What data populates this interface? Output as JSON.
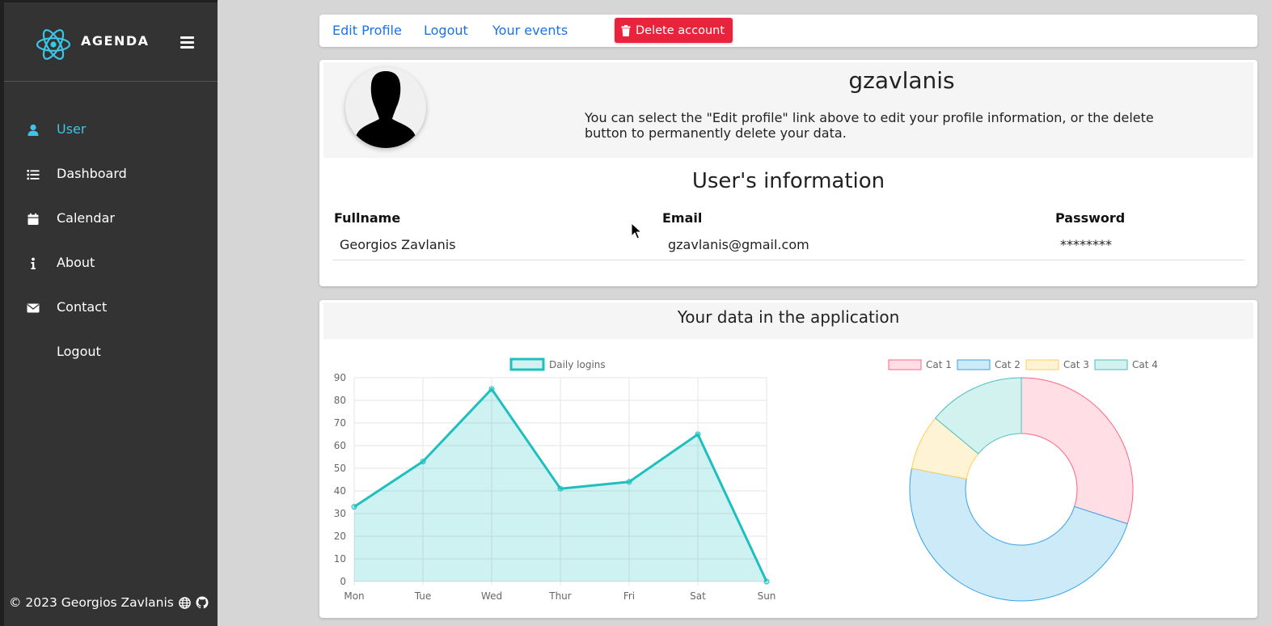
{
  "sidebar": {
    "brand": "AGENDA",
    "items": [
      {
        "label": "User",
        "icon": "user-icon",
        "active": true
      },
      {
        "label": "Dashboard",
        "icon": "list-icon",
        "active": false
      },
      {
        "label": "Calendar",
        "icon": "calendar-icon",
        "active": false
      },
      {
        "label": "About",
        "icon": "info-icon",
        "active": false
      },
      {
        "label": "Contact",
        "icon": "envelope-icon",
        "active": false
      },
      {
        "label": "Logout",
        "icon": "",
        "active": false
      }
    ],
    "footer": "©  2023 Georgios Zavlanis"
  },
  "topbar": {
    "edit_profile": "Edit Profile",
    "logout": "Logout",
    "your_events": "Your events",
    "delete_account": "Delete account"
  },
  "profile": {
    "username": "gzavlanis",
    "description": "You can select the \"Edit profile\" link above to edit your profile information, or the delete button to permanently delete your data.",
    "info_title": "User's information",
    "headers": {
      "fullname": "Fullname",
      "email": "Email",
      "password": "Password"
    },
    "values": {
      "fullname": "Georgios Zavlanis",
      "email": "gzavlanis@gmail.com",
      "password": "********"
    }
  },
  "data_section": {
    "title": "Your data in the application"
  },
  "colors": {
    "accent": "#3bc6e6",
    "link": "#1a73e8",
    "danger": "#e8243c",
    "sidebar": "#333333"
  },
  "chart_data": [
    {
      "type": "line",
      "categories": [
        "Mon",
        "Tue",
        "Wed",
        "Thur",
        "Fri",
        "Sat",
        "Sun"
      ],
      "series": [
        {
          "name": "Daily logins",
          "values": [
            33,
            53,
            85,
            41,
            44,
            65,
            0
          ],
          "color": "#1fbfbf"
        }
      ],
      "ylim": [
        0,
        90
      ],
      "yticks": [
        0,
        10,
        20,
        30,
        40,
        50,
        60,
        70,
        80,
        90
      ],
      "fill": true,
      "grid": true,
      "legend": "top"
    },
    {
      "type": "pie",
      "donut": true,
      "labels": [
        "Cat 1",
        "Cat 2",
        "Cat 3",
        "Cat 4"
      ],
      "values": [
        30,
        48,
        8,
        14
      ],
      "fill_colors": [
        "#ffdfe5",
        "#cdeaf8",
        "#fff3d6",
        "#d2f2ef"
      ],
      "border_colors": [
        "#ff6384",
        "#36a2eb",
        "#ffce56",
        "#4bc0c0"
      ],
      "legend": "top"
    }
  ]
}
